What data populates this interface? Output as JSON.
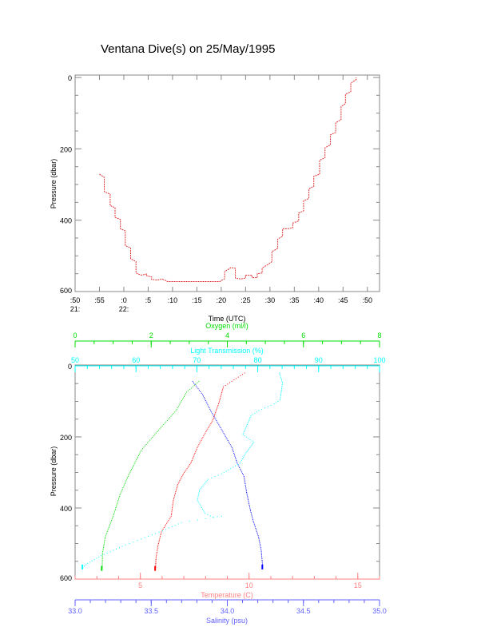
{
  "title": "Ventana Dive(s) on 25/May/1995",
  "colors": {
    "axis": "#000000",
    "frame": "#888888",
    "depth": "#e03030",
    "temperature": "#ff0000",
    "salinity": "#0000ff",
    "oxygen": "#00dd00",
    "light": "#00ffff"
  },
  "chart_data": [
    {
      "type": "line",
      "title": "Ventana Dive(s) on 25/May/1995",
      "xlabel": "Time (UTC)",
      "ylabel": "Pressure (dbar)",
      "x_units": "minutes after 21:50",
      "xlim": [
        0,
        62.5
      ],
      "ylim": [
        600,
        0
      ],
      "x_ticks": [
        0,
        5,
        10,
        15,
        20,
        25,
        30,
        35,
        40,
        45,
        50,
        55,
        60
      ],
      "x_tick_labels": [
        ":50",
        ":55",
        ":0",
        ":5",
        ":10",
        ":15",
        ":20",
        ":25",
        ":30",
        ":35",
        ":40",
        ":45",
        ":50"
      ],
      "x_hour_labels": [
        {
          "at": 0,
          "label": "21:"
        },
        {
          "at": 10,
          "label": "22:"
        }
      ],
      "y_ticks": [
        0,
        200,
        400,
        600
      ],
      "y_tick_labels": [
        "0",
        "200",
        "400",
        "600"
      ],
      "series": [
        {
          "name": "Pressure",
          "points": [
            [
              5.0,
              271
            ],
            [
              6.0,
              280
            ],
            [
              6.0,
              320
            ],
            [
              7.2,
              327
            ],
            [
              7.2,
              359
            ],
            [
              8.2,
              365
            ],
            [
              8.2,
              392
            ],
            [
              9.3,
              398
            ],
            [
              9.3,
              424
            ],
            [
              10.3,
              430
            ],
            [
              10.3,
              471
            ],
            [
              11.4,
              478
            ],
            [
              11.4,
              508
            ],
            [
              12.5,
              516
            ],
            [
              12.5,
              548
            ],
            [
              13.5,
              554
            ],
            [
              14.7,
              551
            ],
            [
              14.7,
              556
            ],
            [
              15.7,
              559
            ],
            [
              15.7,
              566
            ],
            [
              16.8,
              568
            ],
            [
              17.9,
              565
            ],
            [
              19.0,
              572
            ],
            [
              29.7,
              572
            ],
            [
              30.7,
              564
            ],
            [
              30.7,
              544
            ],
            [
              32.0,
              533
            ],
            [
              32.9,
              535
            ],
            [
              32.9,
              562
            ],
            [
              34.0,
              565
            ],
            [
              35.0,
              562
            ],
            [
              35.0,
              554
            ],
            [
              36.3,
              554
            ],
            [
              36.3,
              561
            ],
            [
              37.4,
              561
            ],
            [
              37.4,
              550
            ],
            [
              38.4,
              548
            ],
            [
              38.4,
              534
            ],
            [
              39.5,
              525
            ],
            [
              40.4,
              516
            ],
            [
              40.4,
              488
            ],
            [
              41.6,
              479
            ],
            [
              41.6,
              453
            ],
            [
              42.6,
              445
            ],
            [
              42.6,
              424
            ],
            [
              43.7,
              424
            ],
            [
              44.7,
              421
            ],
            [
              44.7,
              408
            ],
            [
              45.9,
              402
            ],
            [
              45.9,
              380
            ],
            [
              46.9,
              374
            ],
            [
              46.9,
              346
            ],
            [
              48.0,
              339
            ],
            [
              48.0,
              312
            ],
            [
              49.0,
              305
            ],
            [
              49.0,
              277
            ],
            [
              50.2,
              271
            ],
            [
              50.2,
              232
            ],
            [
              51.3,
              225
            ],
            [
              51.3,
              197
            ],
            [
              52.4,
              189
            ],
            [
              52.4,
              161
            ],
            [
              53.5,
              154
            ],
            [
              53.5,
              127
            ],
            [
              54.6,
              118
            ],
            [
              54.6,
              82
            ],
            [
              55.5,
              73
            ],
            [
              55.5,
              47
            ],
            [
              56.6,
              40
            ],
            [
              56.6,
              16
            ],
            [
              57.7,
              6
            ],
            [
              57.7,
              0
            ]
          ]
        }
      ]
    },
    {
      "type": "scatter",
      "ylabel": "Pressure (dbar)",
      "ylim": [
        600,
        0
      ],
      "y_ticks": [
        0,
        200,
        400,
        600
      ],
      "y_tick_labels": [
        "0",
        "200",
        "400",
        "600"
      ],
      "axes": {
        "oxygen": {
          "label": "Oxygen (ml/l)",
          "range": [
            0,
            8
          ],
          "ticks": [
            0,
            2,
            4,
            6,
            8
          ],
          "tick_labels": [
            "0",
            "2",
            "4",
            "6",
            "8"
          ],
          "position": "top-outer"
        },
        "light": {
          "label": "Light Transmission (%)",
          "range": [
            50,
            100
          ],
          "ticks": [
            50,
            60,
            70,
            80,
            90,
            100
          ],
          "tick_labels": [
            "50",
            "60",
            "70",
            "80",
            "90",
            "100"
          ],
          "position": "top"
        },
        "temperature": {
          "label": "Temperature (C)",
          "range": [
            2,
            16
          ],
          "ticks": [
            5,
            10,
            15
          ],
          "tick_labels": [
            "5",
            "10",
            "15"
          ],
          "position": "bottom"
        },
        "salinity": {
          "label": "Salinity (psu)",
          "range": [
            33.0,
            35.0
          ],
          "ticks": [
            33.0,
            33.5,
            34.0,
            34.5,
            35.0
          ],
          "tick_labels": [
            "33.0",
            "33.5",
            "34.0",
            "34.5",
            "35.0"
          ],
          "position": "bottom-outer"
        }
      },
      "series": [
        {
          "name": "Temperature",
          "axis": "temperature",
          "points": [
            [
              9.78,
              19
            ],
            [
              8.8,
              58
            ],
            [
              8.6,
              102
            ],
            [
              8.3,
              154
            ],
            [
              8.0,
              184
            ],
            [
              7.6,
              229
            ],
            [
              7.3,
              273
            ],
            [
              6.96,
              303
            ],
            [
              6.7,
              333
            ],
            [
              6.5,
              377
            ],
            [
              6.4,
              422
            ],
            [
              5.95,
              466
            ],
            [
              5.8,
              503
            ],
            [
              5.7,
              540
            ],
            [
              5.68,
              570
            ]
          ]
        },
        {
          "name": "Salinity",
          "axis": "salinity",
          "points": [
            [
              33.77,
              43
            ],
            [
              33.835,
              80
            ],
            [
              33.888,
              125
            ],
            [
              33.958,
              177
            ],
            [
              34.028,
              229
            ],
            [
              34.063,
              273
            ],
            [
              34.107,
              310
            ],
            [
              34.124,
              355
            ],
            [
              34.15,
              407
            ],
            [
              34.168,
              436
            ],
            [
              34.203,
              481
            ],
            [
              34.22,
              518
            ],
            [
              34.23,
              566
            ]
          ]
        },
        {
          "name": "Oxygen",
          "axis": "oxygen",
          "points": [
            [
              3.24,
              43
            ],
            [
              2.92,
              73
            ],
            [
              2.64,
              125
            ],
            [
              2.15,
              184
            ],
            [
              1.73,
              236
            ],
            [
              1.38,
              310
            ],
            [
              1.17,
              362
            ],
            [
              0.99,
              422
            ],
            [
              0.78,
              481
            ],
            [
              0.71,
              526
            ],
            [
              0.7,
              570
            ]
          ]
        },
        {
          "name": "Light Transmission",
          "axis": "light",
          "points": [
            [
              83.5,
              19
            ],
            [
              84.0,
              47
            ],
            [
              83.6,
              95
            ],
            [
              82.6,
              106
            ],
            [
              80.1,
              125
            ],
            [
              78.8,
              140
            ],
            [
              77.5,
              192
            ],
            [
              79.3,
              214
            ],
            [
              78.0,
              244
            ],
            [
              77.0,
              273
            ],
            [
              74.0,
              303
            ],
            [
              71.8,
              318
            ],
            [
              70.4,
              348
            ],
            [
              70.0,
              377
            ],
            [
              71.3,
              414
            ],
            [
              72.6,
              425
            ],
            [
              74.0,
              422
            ],
            [
              67.4,
              440
            ],
            [
              64.3,
              463
            ],
            [
              60.8,
              486
            ],
            [
              58.2,
              503
            ],
            [
              54.2,
              533
            ],
            [
              52.0,
              555
            ],
            [
              51.2,
              566
            ]
          ]
        }
      ]
    }
  ]
}
